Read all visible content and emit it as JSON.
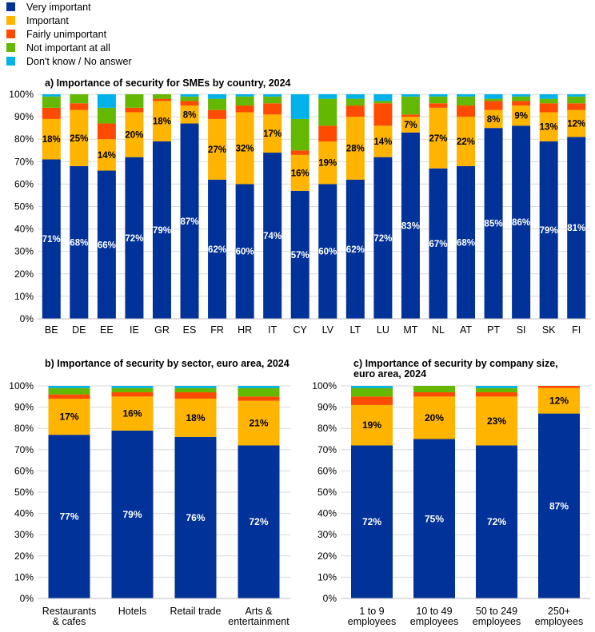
{
  "legend": [
    {
      "label": "Very important",
      "color": "#003299"
    },
    {
      "label": "Important",
      "color": "#FFB400"
    },
    {
      "label": "Fairly unimportant",
      "color": "#FF4B00"
    },
    {
      "label": "Not important at all",
      "color": "#65B800"
    },
    {
      "label": "Don't know / No answer",
      "color": "#00B1EA"
    }
  ],
  "chart_data": [
    {
      "type": "bar",
      "stacked": true,
      "title": "a) Importance of security for SMEs by country, 2024",
      "categories": [
        "BE",
        "DE",
        "EE",
        "IE",
        "GR",
        "ES",
        "FR",
        "HR",
        "IT",
        "CY",
        "LV",
        "LT",
        "LU",
        "MT",
        "NL",
        "AT",
        "PT",
        "SI",
        "SK",
        "FI"
      ],
      "ylim": [
        0,
        100
      ],
      "yticks": [
        "0%",
        "10%",
        "20%",
        "30%",
        "40%",
        "50%",
        "60%",
        "70%",
        "80%",
        "90%",
        "100%"
      ],
      "series": [
        {
          "name": "Very important",
          "values": [
            71,
            68,
            66,
            72,
            79,
            87,
            62,
            60,
            74,
            57,
            60,
            62,
            72,
            83,
            67,
            68,
            85,
            86,
            79,
            81
          ],
          "labels": [
            "71%",
            "68%",
            "66%",
            "72%",
            "79%",
            "87%",
            "62%",
            "60%",
            "74%",
            "57%",
            "60%",
            "62%",
            "72%",
            "83%",
            "67%",
            "68%",
            "85%",
            "86%",
            "79%",
            "81%"
          ]
        },
        {
          "name": "Important",
          "values": [
            18,
            25,
            14,
            20,
            18,
            8,
            27,
            32,
            17,
            16,
            19,
            28,
            14,
            7,
            27,
            22,
            8,
            9,
            13,
            12
          ],
          "labels": [
            "18%",
            "25%",
            "14%",
            "20%",
            "18%",
            "8%",
            "27%",
            "32%",
            "17%",
            "16%",
            "19%",
            "28%",
            "14%",
            "7%",
            "27%",
            "22%",
            "8%",
            "9%",
            "13%",
            "12%"
          ]
        },
        {
          "name": "Fairly unimportant",
          "values": [
            5,
            3,
            7,
            2,
            1,
            2,
            4,
            3,
            5,
            2,
            7,
            5,
            10,
            1,
            2,
            5,
            4,
            2,
            4,
            3
          ]
        },
        {
          "name": "Not important at all",
          "values": [
            5,
            4,
            7,
            6,
            2,
            2,
            5,
            4,
            3,
            14,
            12,
            3,
            1,
            8,
            3,
            4,
            1,
            2,
            2,
            3
          ]
        },
        {
          "name": "Don't know / No answer",
          "values": [
            1,
            0,
            6,
            0,
            0,
            1,
            2,
            1,
            1,
            11,
            2,
            2,
            3,
            1,
            1,
            1,
            2,
            1,
            2,
            1
          ]
        }
      ]
    },
    {
      "type": "bar",
      "stacked": true,
      "title": "b) Importance of security by sector, euro area, 2024",
      "categories": [
        "Restaurants & cafes",
        "Hotels",
        "Retail trade",
        "Arts & entertainment"
      ],
      "ylim": [
        0,
        100
      ],
      "yticks": [
        "0%",
        "10%",
        "20%",
        "30%",
        "40%",
        "50%",
        "60%",
        "70%",
        "80%",
        "90%",
        "100%"
      ],
      "series": [
        {
          "name": "Very important",
          "values": [
            77,
            79,
            76,
            72
          ],
          "labels": [
            "77%",
            "79%",
            "76%",
            "72%"
          ]
        },
        {
          "name": "Important",
          "values": [
            17,
            16,
            18,
            21
          ],
          "labels": [
            "17%",
            "16%",
            "18%",
            "21%"
          ]
        },
        {
          "name": "Fairly unimportant",
          "values": [
            2,
            2,
            3,
            2
          ]
        },
        {
          "name": "Not important at all",
          "values": [
            3,
            2,
            2,
            4
          ]
        },
        {
          "name": "Don't know / No answer",
          "values": [
            1,
            1,
            1,
            1
          ]
        }
      ]
    },
    {
      "type": "bar",
      "stacked": true,
      "title": "c) Importance of security by company size, euro area, 2024",
      "categories": [
        "1 to 9 employees",
        "10 to 49 employees",
        "50 to 249 employees",
        "250+ employees"
      ],
      "ylim": [
        0,
        100
      ],
      "yticks": [
        "0%",
        "10%",
        "20%",
        "30%",
        "40%",
        "50%",
        "60%",
        "70%",
        "80%",
        "90%",
        "100%"
      ],
      "series": [
        {
          "name": "Very important",
          "values": [
            72,
            75,
            72,
            87
          ],
          "labels": [
            "72%",
            "75%",
            "72%",
            "87%"
          ]
        },
        {
          "name": "Important",
          "values": [
            19,
            20,
            23,
            12
          ],
          "labels": [
            "19%",
            "20%",
            "23%",
            "12%"
          ]
        },
        {
          "name": "Fairly unimportant",
          "values": [
            4,
            2,
            2,
            1
          ]
        },
        {
          "name": "Not important at all",
          "values": [
            4,
            3,
            2,
            0
          ]
        },
        {
          "name": "Don't know / No answer",
          "values": [
            1,
            0,
            1,
            0
          ]
        }
      ]
    }
  ]
}
